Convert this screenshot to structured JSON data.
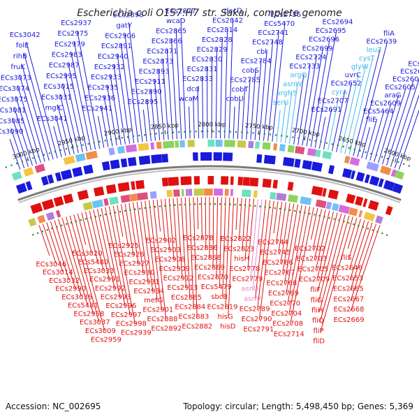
{
  "title": "Escherichia coli O157:H7 str. Sakai, complete genome",
  "footer": {
    "accession": "Accession: NC_002695",
    "topology": "Topology: circular; Length: 5,498,450 bp; Genes: 5,369"
  },
  "colors": {
    "forward": "#1a1adc",
    "reverse": "#e01010",
    "rna_forward": "#40b8ee",
    "rna_reverse": "#e48ad2"
  },
  "axis": {
    "ticks": [
      "3000 kbp",
      "2950 kbp",
      "2900 kbp",
      "2850 kbp",
      "2800 kbp",
      "2750 kbp",
      "2700 kbp",
      "2650 kbp",
      "2600 kbp"
    ],
    "tick_kbp": [
      3000,
      2950,
      2900,
      2850,
      2800,
      2750,
      2700,
      2650,
      2600
    ],
    "range_kbp": [
      2580,
      3025
    ]
  },
  "forward_genes": [
    {
      "name": "ECs3090",
      "type": "gene"
    },
    {
      "name": "ECs3085",
      "type": "gene"
    },
    {
      "name": "ECs3081",
      "type": "gene"
    },
    {
      "name": "ECs3075",
      "type": "gene"
    },
    {
      "name": "ECs3074",
      "type": "gene"
    },
    {
      "name": "ECs3073",
      "type": "gene"
    },
    {
      "name": "fruK",
      "type": "gene"
    },
    {
      "name": "rihB",
      "type": "gene"
    },
    {
      "name": "folE",
      "type": "gene"
    },
    {
      "name": "ECs3042",
      "type": "gene"
    },
    {
      "name": "ECs3041",
      "type": "gene"
    },
    {
      "name": "mglC",
      "type": "gene"
    },
    {
      "name": "ECs3031",
      "type": "gene"
    },
    {
      "name": "ECs3015",
      "type": "gene"
    },
    {
      "name": "ECs2995",
      "type": "gene"
    },
    {
      "name": "ECs2987",
      "type": "gene"
    },
    {
      "name": "ECs2983",
      "type": "gene"
    },
    {
      "name": "ECs2979",
      "type": "gene"
    },
    {
      "name": "ECs2975",
      "type": "gene"
    },
    {
      "name": "ECs2937",
      "type": "gene"
    },
    {
      "name": "ECs2941",
      "type": "gene"
    },
    {
      "name": "ECs2936",
      "type": "gene"
    },
    {
      "name": "ECs2935",
      "type": "gene"
    },
    {
      "name": "ECs2933",
      "type": "gene"
    },
    {
      "name": "ECs2932",
      "type": "gene"
    },
    {
      "name": "ECs2940",
      "type": "gene"
    },
    {
      "name": "ECs2891",
      "type": "gene"
    },
    {
      "name": "ECs2906",
      "type": "gene"
    },
    {
      "name": "gatY",
      "type": "gene"
    },
    {
      "name": "ECs2898",
      "type": "gene"
    },
    {
      "name": "ECs2895",
      "type": "gene"
    },
    {
      "name": "ECs2890",
      "type": "gene"
    },
    {
      "name": "ECs2911",
      "type": "gene"
    },
    {
      "name": "ECs2893",
      "type": "gene"
    },
    {
      "name": "ECs2873",
      "type": "gene"
    },
    {
      "name": "ECs2871",
      "type": "gene"
    },
    {
      "name": "ECs2866",
      "type": "gene"
    },
    {
      "name": "ECs2865",
      "type": "gene"
    },
    {
      "name": "wcaD",
      "type": "gene"
    },
    {
      "name": "ECs2877",
      "type": "gene"
    },
    {
      "name": "wcaM",
      "type": "gene"
    },
    {
      "name": "dcd",
      "type": "gene"
    },
    {
      "name": "ECs2833",
      "type": "gene"
    },
    {
      "name": "ECs2831",
      "type": "gene"
    },
    {
      "name": "ECs2830",
      "type": "gene"
    },
    {
      "name": "ECs2829",
      "type": "gene"
    },
    {
      "name": "ECs2828",
      "type": "gene"
    },
    {
      "name": "ECs2814",
      "type": "gene"
    },
    {
      "name": "ECs2842",
      "type": "gene"
    },
    {
      "name": "dacD",
      "type": "gene"
    },
    {
      "name": "cobU",
      "type": "gene"
    },
    {
      "name": "cobT",
      "type": "gene"
    },
    {
      "name": "ECs2785",
      "type": "gene"
    },
    {
      "name": "cobS",
      "type": "gene"
    },
    {
      "name": "ECs2784",
      "type": "gene"
    },
    {
      "name": "cbl",
      "type": "gene"
    },
    {
      "name": "ECs2748",
      "type": "gene"
    },
    {
      "name": "ECs2741",
      "type": "gene"
    },
    {
      "name": "ECs5470",
      "type": "gene"
    },
    {
      "name": "ECs2736",
      "type": "gene"
    },
    {
      "name": "serU",
      "type": "rna"
    },
    {
      "name": "argN5",
      "type": "rna"
    },
    {
      "name": "asnW",
      "type": "rna"
    },
    {
      "name": "argQ",
      "type": "rna"
    },
    {
      "name": "ECs2733",
      "type": "gene"
    },
    {
      "name": "ECs2724",
      "type": "gene"
    },
    {
      "name": "ECs2699",
      "type": "gene"
    },
    {
      "name": "ECs2696",
      "type": "gene"
    },
    {
      "name": "ECs2695",
      "type": "gene"
    },
    {
      "name": "ECs2694",
      "type": "gene"
    },
    {
      "name": "ECs2691",
      "type": "gene"
    },
    {
      "name": "ECs2707",
      "type": "gene"
    },
    {
      "name": "cyrA",
      "type": "rna"
    },
    {
      "name": "ECs2652",
      "type": "gene"
    },
    {
      "name": "uvrC",
      "type": "gene"
    },
    {
      "name": "glyW",
      "type": "rna"
    },
    {
      "name": "cysT",
      "type": "rna"
    },
    {
      "name": "leuZ",
      "type": "rna"
    },
    {
      "name": "ECs2639",
      "type": "gene"
    },
    {
      "name": "fliA",
      "type": "gene"
    },
    {
      "name": "fliE",
      "type": "gene"
    },
    {
      "name": "ECs5464",
      "type": "gene"
    },
    {
      "name": "ECs2609",
      "type": "gene"
    },
    {
      "name": "araG",
      "type": "gene"
    },
    {
      "name": "ECs2605",
      "type": "gene"
    },
    {
      "name": "ECs2604",
      "type": "gene"
    },
    {
      "name": "ECs2602",
      "type": "gene"
    },
    {
      "name": "ECs2601",
      "type": "gene"
    },
    {
      "name": "motB",
      "type": "gene"
    },
    {
      "name": "ECs2620",
      "type": "gene"
    }
  ],
  "reverse_genes": [
    {
      "name": "ECs3046",
      "type": "gene"
    },
    {
      "name": "ECs3014",
      "type": "gene"
    },
    {
      "name": "ECs3032",
      "type": "gene"
    },
    {
      "name": "ECs2990",
      "type": "gene"
    },
    {
      "name": "ECs3036",
      "type": "gene"
    },
    {
      "name": "ECs5481",
      "type": "gene"
    },
    {
      "name": "ECs2958",
      "type": "gene"
    },
    {
      "name": "ECs3037",
      "type": "gene"
    },
    {
      "name": "ECs3009",
      "type": "gene"
    },
    {
      "name": "ECs2959",
      "type": "gene"
    },
    {
      "name": "ECs3020",
      "type": "gene"
    },
    {
      "name": "ECs5480",
      "type": "gene"
    },
    {
      "name": "ECs3033",
      "type": "gene"
    },
    {
      "name": "ECs2991",
      "type": "gene"
    },
    {
      "name": "ECs2992",
      "type": "gene"
    },
    {
      "name": "ECs2993",
      "type": "gene"
    },
    {
      "name": "ECs2996",
      "type": "gene"
    },
    {
      "name": "ECs2997",
      "type": "gene"
    },
    {
      "name": "ECs2998",
      "type": "gene"
    },
    {
      "name": "ECs2939",
      "type": "gene"
    },
    {
      "name": "ECs2925",
      "type": "gene"
    },
    {
      "name": "ECs2926",
      "type": "gene"
    },
    {
      "name": "ECs2927",
      "type": "gene"
    },
    {
      "name": "ECs2930",
      "type": "gene"
    },
    {
      "name": "ECs2931",
      "type": "gene"
    },
    {
      "name": "ECs2934",
      "type": "gene"
    },
    {
      "name": "metG",
      "type": "gene"
    },
    {
      "name": "ECs2901",
      "type": "gene"
    },
    {
      "name": "ECs2888",
      "type": "gene"
    },
    {
      "name": "ECs2892",
      "type": "gene"
    },
    {
      "name": "ECs2902",
      "type": "gene"
    },
    {
      "name": "ECs2903",
      "type": "gene"
    },
    {
      "name": "ECs2908",
      "type": "gene"
    },
    {
      "name": "ECs2909",
      "type": "gene"
    },
    {
      "name": "ECs2912",
      "type": "gene"
    },
    {
      "name": "ECs2913",
      "type": "gene"
    },
    {
      "name": "ECs2885",
      "type": "gene"
    },
    {
      "name": "ECs2884",
      "type": "gene"
    },
    {
      "name": "ECs2883",
      "type": "gene"
    },
    {
      "name": "ECs2882",
      "type": "gene"
    },
    {
      "name": "ECs2878",
      "type": "gene"
    },
    {
      "name": "ECs2886",
      "type": "gene"
    },
    {
      "name": "ECs2868",
      "type": "gene"
    },
    {
      "name": "ECs2869",
      "type": "gene"
    },
    {
      "name": "ECs2870",
      "type": "gene"
    },
    {
      "name": "ECs5479",
      "type": "gene"
    },
    {
      "name": "sbcB",
      "type": "gene"
    },
    {
      "name": "ECs2819",
      "type": "gene"
    },
    {
      "name": "hisG",
      "type": "gene"
    },
    {
      "name": "hisD",
      "type": "gene"
    },
    {
      "name": "ECs2822",
      "type": "gene"
    },
    {
      "name": "ECs2823",
      "type": "gene"
    },
    {
      "name": "hisH",
      "type": "gene"
    },
    {
      "name": "ECs2778",
      "type": "gene"
    },
    {
      "name": "ECs2779",
      "type": "gene"
    },
    {
      "name": "asnU",
      "type": "rna"
    },
    {
      "name": "asnV",
      "type": "rna"
    },
    {
      "name": "ECs2789",
      "type": "gene"
    },
    {
      "name": "ECs2790",
      "type": "gene"
    },
    {
      "name": "ECs2791",
      "type": "gene"
    },
    {
      "name": "ECs2744",
      "type": "gene"
    },
    {
      "name": "ECs2745",
      "type": "gene"
    },
    {
      "name": "ECs2766",
      "type": "gene"
    },
    {
      "name": "ECs2767",
      "type": "gene"
    },
    {
      "name": "ECs2768",
      "type": "gene"
    },
    {
      "name": "ECs2769",
      "type": "gene"
    },
    {
      "name": "ECs2770",
      "type": "gene"
    },
    {
      "name": "ECs2704",
      "type": "gene"
    },
    {
      "name": "ECs2708",
      "type": "gene"
    },
    {
      "name": "ECs2714",
      "type": "gene"
    },
    {
      "name": "ECs2702",
      "type": "gene"
    },
    {
      "name": "ECs2703",
      "type": "gene"
    },
    {
      "name": "ECs2705",
      "type": "gene"
    },
    {
      "name": "ECs2709",
      "type": "gene"
    },
    {
      "name": "fliF",
      "type": "gene"
    },
    {
      "name": "fliG",
      "type": "gene"
    },
    {
      "name": "fliH",
      "type": "gene"
    },
    {
      "name": "fliQ",
      "type": "gene"
    },
    {
      "name": "fliP",
      "type": "gene"
    },
    {
      "name": "fliD",
      "type": "gene"
    },
    {
      "name": "fliS",
      "type": "gene"
    },
    {
      "name": "ECs2646",
      "type": "gene"
    },
    {
      "name": "ECs2653",
      "type": "gene"
    },
    {
      "name": "ECs2665",
      "type": "gene"
    },
    {
      "name": "ECs2667",
      "type": "gene"
    },
    {
      "name": "ECs2668",
      "type": "gene"
    },
    {
      "name": "ECs2669",
      "type": "gene"
    }
  ]
}
